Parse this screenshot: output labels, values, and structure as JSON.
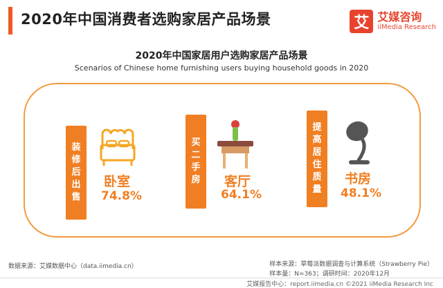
{
  "header": {
    "title": "2020年中国消费者选购家居产品场景",
    "brand_cn": "艾媒咨询",
    "brand_en": "iiMedia Research",
    "brand_logo_char": "艾",
    "accent": "#f15a24"
  },
  "chart_data": {
    "type": "infographic",
    "title": "2020年中国家居用户选购家居产品场景",
    "subtitle": "Scenarios of Chinese home furnishing users buying household goods in 2020",
    "items": [
      {
        "scenario": "装修后出售",
        "room": "卧室",
        "value": 74.8,
        "value_label": "74.8%",
        "icon": "bed-icon"
      },
      {
        "scenario": "买二手房",
        "room": "客厅",
        "value": 64.1,
        "value_label": "64.1%",
        "icon": "table-vase-icon"
      },
      {
        "scenario": "提高居住质量",
        "room": "书房",
        "value": 48.1,
        "value_label": "48.1%",
        "icon": "desk-lamp-icon"
      }
    ],
    "accent_color": "#f07f23"
  },
  "footer": {
    "source": "数据来源：艾媒数据中心（data.iimedia.cn）",
    "sample_source": "样本来源：草莓派数据调查与计算系统（Strawberry Pie）",
    "sample_size": "样本量：N=363；调研时间：2020年12月",
    "copyright": "艾媒报告中心：report.iimedia.cn  ©2021  iiMedia Research  Inc"
  }
}
